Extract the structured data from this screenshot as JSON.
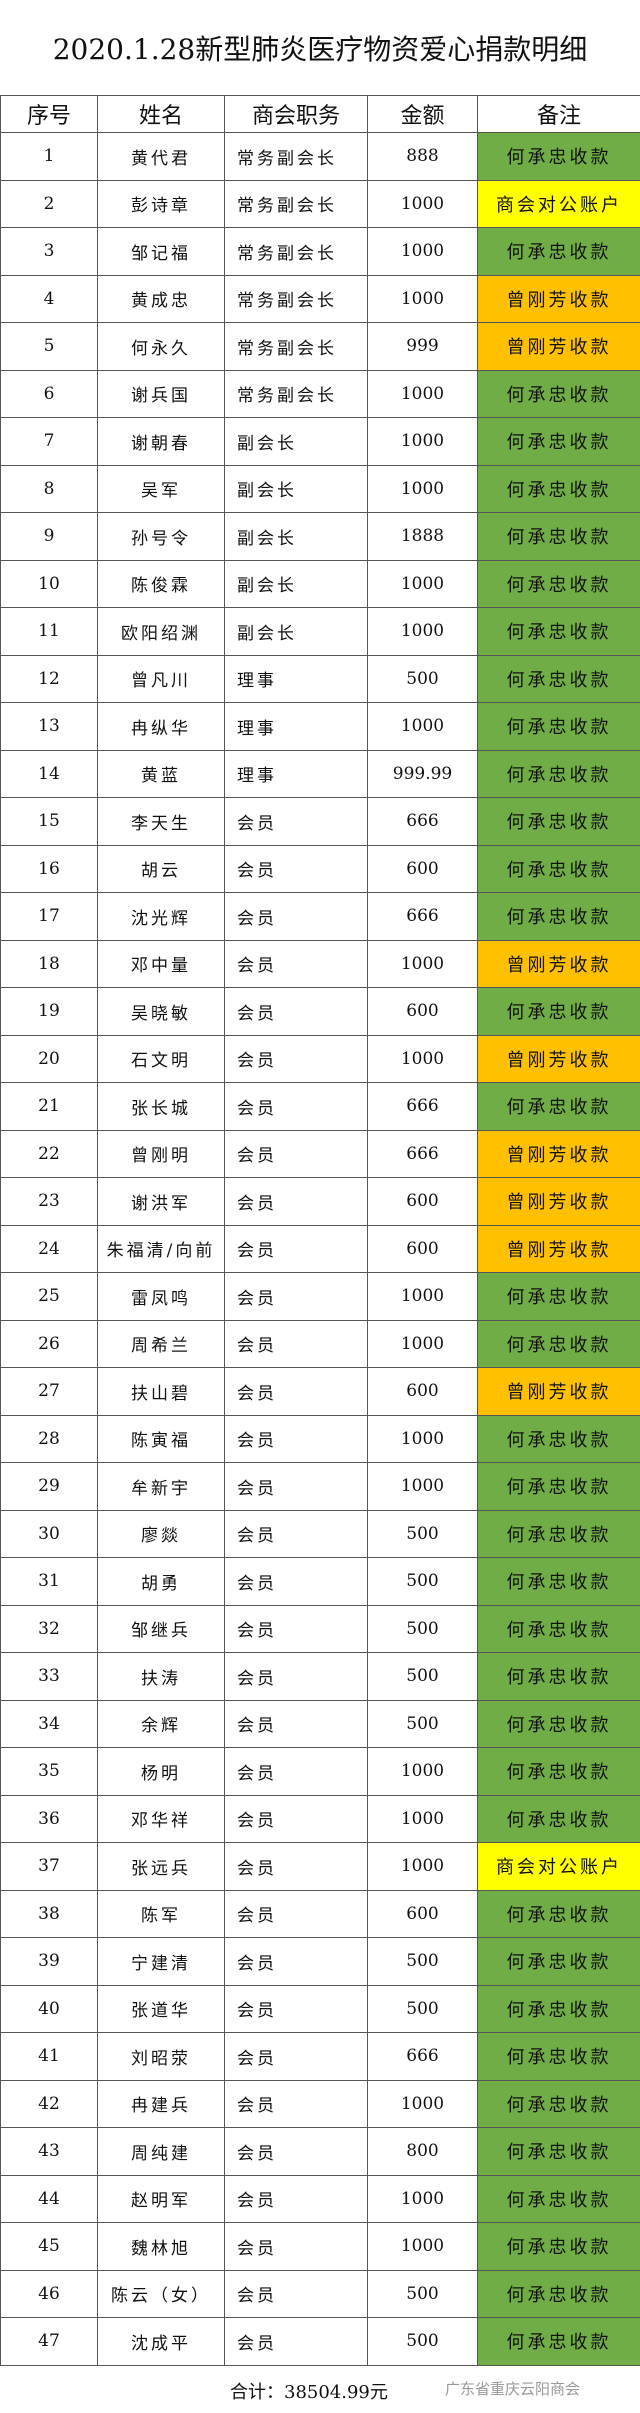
{
  "title": "2020.1.28新型肺炎医疗物资爱心捐款明细",
  "headers": [
    "序号",
    "姓名",
    "商会职务",
    "金额",
    "备注"
  ],
  "note_colors": {
    "何承忠收款": "#70ad47",
    "曾刚芳收款": "#ffc000",
    "商会对公账户": "#ffff00"
  },
  "rows": [
    [
      "1",
      "黄代君",
      "常务副会长",
      "888",
      "何承忠收款"
    ],
    [
      "2",
      "彭诗章",
      "常务副会长",
      "1000",
      "商会对公账户"
    ],
    [
      "3",
      "邹记福",
      "常务副会长",
      "1000",
      "何承忠收款"
    ],
    [
      "4",
      "黄成忠",
      "常务副会长",
      "1000",
      "曾刚芳收款"
    ],
    [
      "5",
      "何永久",
      "常务副会长",
      "999",
      "曾刚芳收款"
    ],
    [
      "6",
      "谢兵国",
      "常务副会长",
      "1000",
      "何承忠收款"
    ],
    [
      "7",
      "谢朝春",
      "副会长",
      "1000",
      "何承忠收款"
    ],
    [
      "8",
      "吴军",
      "副会长",
      "1000",
      "何承忠收款"
    ],
    [
      "9",
      "孙号令",
      "副会长",
      "1888",
      "何承忠收款"
    ],
    [
      "10",
      "陈俊霖",
      "副会长",
      "1000",
      "何承忠收款"
    ],
    [
      "11",
      "欧阳绍渊",
      "副会长",
      "1000",
      "何承忠收款"
    ],
    [
      "12",
      "曾凡川",
      "理事",
      "500",
      "何承忠收款"
    ],
    [
      "13",
      "冉纵华",
      "理事",
      "1000",
      "何承忠收款"
    ],
    [
      "14",
      "黄蓝",
      "理事",
      "999.99",
      "何承忠收款"
    ],
    [
      "15",
      "李天生",
      "会员",
      "666",
      "何承忠收款"
    ],
    [
      "16",
      "胡云",
      "会员",
      "600",
      "何承忠收款"
    ],
    [
      "17",
      "沈光辉",
      "会员",
      "666",
      "何承忠收款"
    ],
    [
      "18",
      "邓中量",
      "会员",
      "1000",
      "曾刚芳收款"
    ],
    [
      "19",
      "吴晓敏",
      "会员",
      "600",
      "何承忠收款"
    ],
    [
      "20",
      "石文明",
      "会员",
      "1000",
      "曾刚芳收款"
    ],
    [
      "21",
      "张长城",
      "会员",
      "666",
      "何承忠收款"
    ],
    [
      "22",
      "曾刚明",
      "会员",
      "666",
      "曾刚芳收款"
    ],
    [
      "23",
      "谢洪军",
      "会员",
      "600",
      "曾刚芳收款"
    ],
    [
      "24",
      "朱福清/向前",
      "会员",
      "600",
      "曾刚芳收款"
    ],
    [
      "25",
      "雷凤鸣",
      "会员",
      "1000",
      "何承忠收款"
    ],
    [
      "26",
      "周希兰",
      "会员",
      "1000",
      "何承忠收款"
    ],
    [
      "27",
      "扶山碧",
      "会员",
      "600",
      "曾刚芳收款"
    ],
    [
      "28",
      "陈寅福",
      "会员",
      "1000",
      "何承忠收款"
    ],
    [
      "29",
      "牟新宇",
      "会员",
      "1000",
      "何承忠收款"
    ],
    [
      "30",
      "廖燚",
      "会员",
      "500",
      "何承忠收款"
    ],
    [
      "31",
      "胡勇",
      "会员",
      "500",
      "何承忠收款"
    ],
    [
      "32",
      "邹继兵",
      "会员",
      "500",
      "何承忠收款"
    ],
    [
      "33",
      "扶涛",
      "会员",
      "500",
      "何承忠收款"
    ],
    [
      "34",
      "余辉",
      "会员",
      "500",
      "何承忠收款"
    ],
    [
      "35",
      "杨明",
      "会员",
      "1000",
      "何承忠收款"
    ],
    [
      "36",
      "邓华祥",
      "会员",
      "1000",
      "何承忠收款"
    ],
    [
      "37",
      "张远兵",
      "会员",
      "1000",
      "商会对公账户"
    ],
    [
      "38",
      "陈军",
      "会员",
      "600",
      "何承忠收款"
    ],
    [
      "39",
      "宁建清",
      "会员",
      "500",
      "何承忠收款"
    ],
    [
      "40",
      "张道华",
      "会员",
      "500",
      "何承忠收款"
    ],
    [
      "41",
      "刘昭荥",
      "会员",
      "666",
      "何承忠收款"
    ],
    [
      "42",
      "冉建兵",
      "会员",
      "1000",
      "何承忠收款"
    ],
    [
      "43",
      "周纯建",
      "会员",
      "800",
      "何承忠收款"
    ],
    [
      "44",
      "赵明军",
      "会员",
      "1000",
      "何承忠收款"
    ],
    [
      "45",
      "魏林旭",
      "会员",
      "1000",
      "何承忠收款"
    ],
    [
      "46",
      "陈云（女）",
      "会员",
      "500",
      "何承忠收款"
    ],
    [
      "47",
      "沈成平",
      "会员",
      "500",
      "何承忠收款"
    ]
  ],
  "footer": {
    "total": "合计：38504.99元",
    "watermark": "广东省重庆云阳商会"
  }
}
